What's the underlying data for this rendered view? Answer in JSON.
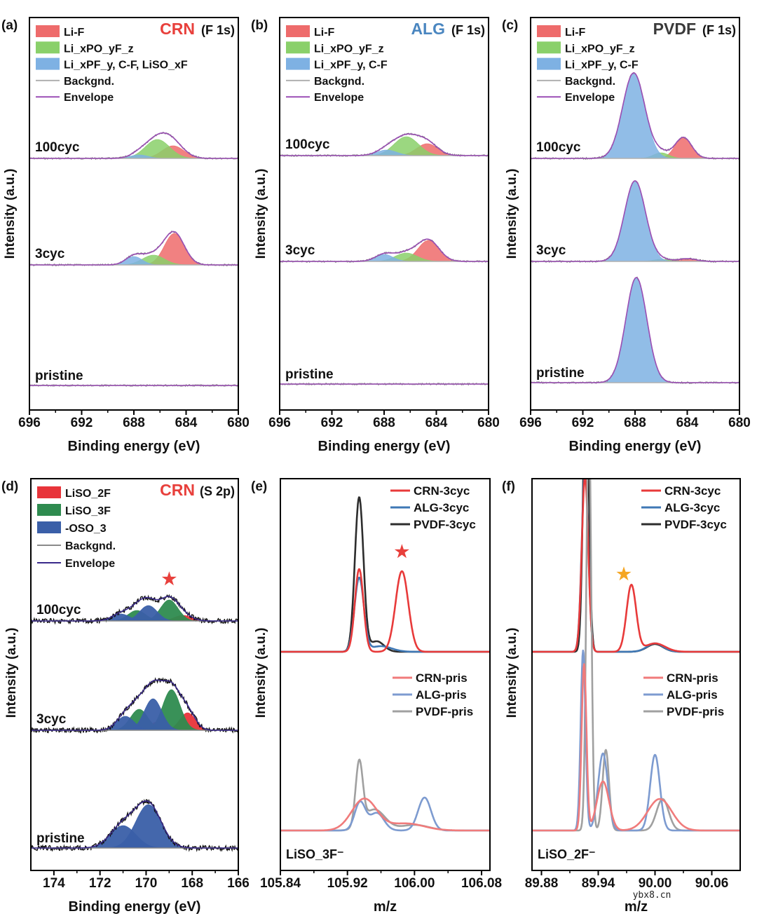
{
  "chart_data": [
    {
      "type": "line",
      "panel": "(a)",
      "title": "CRN",
      "title_color": "#e8403c",
      "subtitle": "(F 1s)",
      "xlabel": "Binding energy (eV)",
      "ylabel": "Intensity (a.u.)",
      "xlim": [
        696,
        680
      ],
      "xticks": [
        "696",
        "692",
        "688",
        "684",
        "680"
      ],
      "xtick_values": [
        696,
        692,
        688,
        684,
        680
      ],
      "legend": [
        {
          "label": "Li-F",
          "kind": "fill",
          "color": "#ee6b6b"
        },
        {
          "label": "Li_xPO_yF_z",
          "kind": "fill",
          "color": "#8ad06a"
        },
        {
          "label": "Li_xPF_y, C-F, LiSO_xF",
          "kind": "fill",
          "color": "#7eb1e3"
        },
        {
          "label": "Backgnd.",
          "kind": "line",
          "color": "#b0b0b0"
        },
        {
          "label": "Envelope",
          "kind": "line",
          "color": "#9b4fb5"
        }
      ],
      "spectra": [
        {
          "label": "100cyc",
          "components": [
            [
              685.0,
              18,
              2.0,
              0
            ],
            [
              686.2,
              27,
              2.2,
              1
            ],
            [
              687.6,
              5,
              1.6,
              2
            ]
          ]
        },
        {
          "label": "3cyc",
          "components": [
            [
              684.9,
              45,
              1.8,
              0
            ],
            [
              686.5,
              14,
              2.0,
              1
            ],
            [
              688.0,
              12,
              1.5,
              2
            ]
          ]
        },
        {
          "label": "pristine",
          "components": []
        }
      ]
    },
    {
      "type": "line",
      "panel": "(b)",
      "title": "ALG",
      "title_color": "#4a86c0",
      "subtitle": "(F 1s)",
      "xlabel": "Binding energy (eV)",
      "ylabel": "Intensity (a.u.)",
      "xlim": [
        696,
        680
      ],
      "xticks": [
        "696",
        "692",
        "688",
        "684",
        "680"
      ],
      "xtick_values": [
        696,
        692,
        688,
        684,
        680
      ],
      "legend": [
        {
          "label": "Li-F",
          "kind": "fill",
          "color": "#ee6b6b"
        },
        {
          "label": "Li_xPO_yF_z",
          "kind": "fill",
          "color": "#8ad06a"
        },
        {
          "label": "Li_xPF_y, C-F",
          "kind": "fill",
          "color": "#7eb1e3"
        },
        {
          "label": "Backgnd.",
          "kind": "line",
          "color": "#b0b0b0"
        },
        {
          "label": "Envelope",
          "kind": "line",
          "color": "#9b4fb5"
        }
      ],
      "spectra": [
        {
          "label": "100cyc",
          "components": [
            [
              684.7,
              17,
              1.9,
              0
            ],
            [
              686.3,
              27,
              2.2,
              1
            ],
            [
              687.8,
              8,
              1.8,
              2
            ]
          ]
        },
        {
          "label": "3cyc",
          "components": [
            [
              684.6,
              30,
              1.9,
              0
            ],
            [
              686.3,
              12,
              2.0,
              1
            ],
            [
              688.0,
              10,
              1.6,
              2
            ]
          ]
        },
        {
          "label": "pristine",
          "components": []
        }
      ]
    },
    {
      "type": "line",
      "panel": "(c)",
      "title": "PVDF",
      "title_color": "#3a3a3a",
      "subtitle": "(F 1s)",
      "xlabel": "Binding energy (eV)",
      "ylabel": "Intensity (a.u.)",
      "xlim": [
        696,
        680
      ],
      "xticks": [
        "696",
        "692",
        "688",
        "684",
        "680"
      ],
      "xtick_values": [
        696,
        692,
        688,
        684,
        680
      ],
      "legend": [
        {
          "label": "Li-F",
          "kind": "fill",
          "color": "#ee6b6b"
        },
        {
          "label": "Li_xPO_yF_z",
          "kind": "fill",
          "color": "#8ad06a"
        },
        {
          "label": "Li_xPF_y, C-F",
          "kind": "fill",
          "color": "#7eb1e3"
        },
        {
          "label": "Backgnd.",
          "kind": "line",
          "color": "#b0b0b0"
        },
        {
          "label": "Envelope",
          "kind": "line",
          "color": "#9b4fb5"
        }
      ],
      "spectra": [
        {
          "label": "100cyc",
          "components": [
            [
              684.3,
              30,
              1.5,
              0
            ],
            [
              686.0,
              8,
              1.4,
              1
            ],
            [
              688.1,
              122,
              2.0,
              2
            ]
          ]
        },
        {
          "label": "3cyc",
          "components": [
            [
              684.0,
              4,
              1.6,
              0
            ],
            [
              686.0,
              3,
              1.4,
              1
            ],
            [
              688.0,
              115,
              1.9,
              2
            ]
          ]
        },
        {
          "label": "pristine",
          "components": [
            [
              687.9,
              150,
              1.9,
              2
            ]
          ]
        }
      ]
    },
    {
      "type": "line",
      "panel": "(d)",
      "title": "CRN",
      "title_color": "#e8403c",
      "subtitle": "(S 2p)",
      "xlabel": "Binding energy (eV)",
      "ylabel": "Intensity (a.u.)",
      "xlim": [
        175,
        166
      ],
      "xticks": [
        "174",
        "172",
        "170",
        "168",
        "166"
      ],
      "xtick_values": [
        174,
        172,
        170,
        168,
        166
      ],
      "legend": [
        {
          "label": "LiSO_2F",
          "kind": "fill",
          "color": "#e8343a"
        },
        {
          "label": "LiSO_3F",
          "kind": "fill",
          "color": "#2e8b4f"
        },
        {
          "label": "-OSO_3",
          "kind": "fill",
          "color": "#3a5fa8"
        },
        {
          "label": "Backgnd.",
          "kind": "line",
          "color": "#8a8a8a"
        },
        {
          "label": "Envelope",
          "kind": "line",
          "color": "#3a2a8a"
        }
      ],
      "annotation_star": {
        "x": 169.0,
        "color": "#e8403c"
      },
      "spectra": [
        {
          "label": "100cyc",
          "components": [
            [
              168.4,
              8,
              0.9,
              0
            ],
            [
              169.6,
              4,
              0.9,
              0
            ],
            [
              169.0,
              30,
              0.9,
              1
            ],
            [
              170.4,
              15,
              0.9,
              1
            ],
            [
              169.9,
              22,
              0.9,
              2
            ],
            [
              171.1,
              10,
              0.9,
              2
            ]
          ]
        },
        {
          "label": "3cyc",
          "components": [
            [
              168.2,
              25,
              0.8,
              0
            ],
            [
              169.5,
              12,
              0.8,
              0
            ],
            [
              168.9,
              58,
              0.9,
              1
            ],
            [
              170.3,
              30,
              0.9,
              1
            ],
            [
              169.7,
              45,
              0.9,
              2
            ],
            [
              170.9,
              20,
              0.9,
              2
            ]
          ]
        },
        {
          "label": "pristine",
          "components": [
            [
              169.9,
              62,
              1.3,
              2
            ],
            [
              171.0,
              32,
              1.3,
              2
            ]
          ]
        }
      ]
    },
    {
      "type": "line",
      "panel": "(e)",
      "annotation": "LiSO_3F⁻",
      "xlabel": "m/z",
      "ylabel": "Intensity (a.u.)",
      "xlim": [
        105.84,
        106.09
      ],
      "xticks": [
        "105.84",
        "105.92",
        "106.00",
        "106.08"
      ],
      "xtick_values": [
        105.84,
        105.92,
        106.0,
        106.08
      ],
      "annotation_star": {
        "x": 105.985,
        "color": "#e8403c"
      },
      "groups": [
        {
          "series": [
            {
              "name": "CRN-3cyc",
              "color": "#e83a3a",
              "peaks": [
                [
                  105.934,
                  118,
                  0.012
                ],
                [
                  105.985,
                  115,
                  0.018
                ]
              ]
            },
            {
              "name": "ALG-3cyc",
              "color": "#3f78b5",
              "peaks": [
                [
                  105.934,
                  105,
                  0.013
                ],
                [
                  105.96,
                  8,
                  0.03
                ]
              ]
            },
            {
              "name": "PVDF-3cyc",
              "color": "#2d2d2d",
              "peaks": [
                [
                  105.934,
                  220,
                  0.012
                ],
                [
                  105.955,
                  15,
                  0.02
                ]
              ]
            }
          ]
        },
        {
          "series": [
            {
              "name": "CRN-pris",
              "color": "#f07b7b",
              "peaks": [
                [
                  105.94,
                  45,
                  0.035
                ],
                [
                  105.99,
                  10,
                  0.05
                ]
              ]
            },
            {
              "name": "ALG-pris",
              "color": "#7d9bd0",
              "peaks": [
                [
                  105.935,
                  40,
                  0.015
                ],
                [
                  105.955,
                  25,
                  0.02
                ],
                [
                  106.012,
                  47,
                  0.018
                ]
              ]
            },
            {
              "name": "PVDF-pris",
              "color": "#a0a0a0",
              "peaks": [
                [
                  105.934,
                  90,
                  0.01
                ],
                [
                  105.952,
                  30,
                  0.03
                ],
                [
                  106.0,
                  8,
                  0.04
                ]
              ]
            }
          ]
        }
      ]
    },
    {
      "type": "line",
      "panel": "(f)",
      "annotation": "LiSO_2F⁻",
      "xlabel": "m/z",
      "ylabel": "Intensity (a.u.)",
      "xlim": [
        89.87,
        90.09
      ],
      "xticks": [
        "89.88",
        "89.94",
        "90.00",
        "90.06"
      ],
      "xtick_values": [
        89.88,
        89.94,
        90.0,
        90.06
      ],
      "annotation_star": {
        "x": 89.973,
        "color": "#f5a623"
      },
      "groups": [
        {
          "series": [
            {
              "name": "CRN-3cyc",
              "color": "#e83a3a",
              "peaks": [
                [
                  89.926,
                  250,
                  0.008
                ],
                [
                  89.975,
                  95,
                  0.012
                ],
                [
                  90.0,
                  12,
                  0.025
                ]
              ]
            },
            {
              "name": "ALG-3cyc",
              "color": "#3f78b5",
              "peaks": [
                [
                  89.926,
                  260,
                  0.008
                ],
                [
                  90.0,
                  12,
                  0.02
                ]
              ]
            },
            {
              "name": "PVDF-3cyc",
              "color": "#2d2d2d",
              "peaks": [
                [
                  89.927,
                  400,
                  0.007
                ],
                [
                  90.0,
                  11,
                  0.02
                ]
              ]
            }
          ]
        },
        {
          "series": [
            {
              "name": "CRN-pris",
              "color": "#f07b7b",
              "peaks": [
                [
                  89.925,
                  237,
                  0.006
                ],
                [
                  89.945,
                  70,
                  0.015
                ],
                [
                  90.005,
                  45,
                  0.03
                ]
              ]
            },
            {
              "name": "ALG-pris",
              "color": "#7d9bd0",
              "peaks": [
                [
                  89.924,
                  257,
                  0.006
                ],
                [
                  89.945,
                  110,
                  0.012
                ],
                [
                  90.0,
                  108,
                  0.012
                ]
              ]
            },
            {
              "name": "PVDF-pris",
              "color": "#a0a0a0",
              "peaks": [
                [
                  89.93,
                  600,
                  0.006
                ],
                [
                  89.948,
                  115,
                  0.008
                ],
                [
                  90.008,
                  45,
                  0.015
                ]
              ]
            }
          ]
        }
      ]
    }
  ],
  "watermark": "ybx8.cn"
}
